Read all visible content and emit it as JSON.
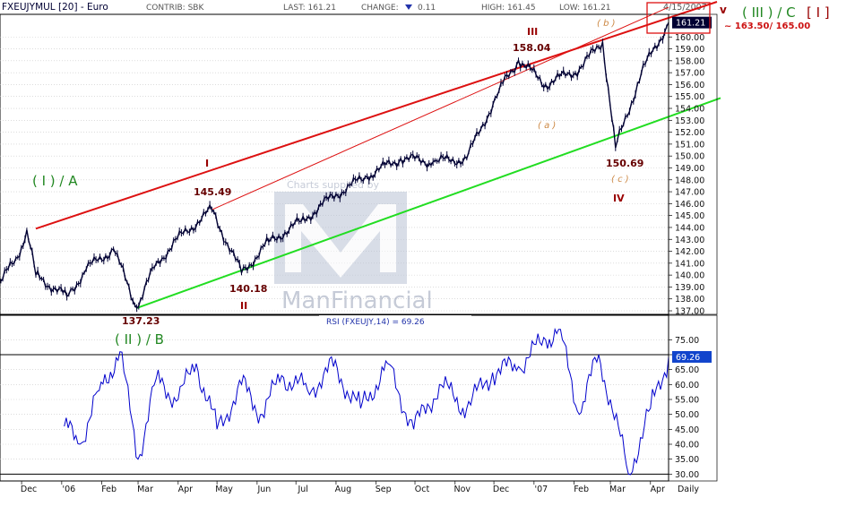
{
  "header": {
    "symbol": "FXEUJYMUL [20] - Euro",
    "contrib": "CONTRIB: SBK",
    "last": "LAST: 161.21",
    "change_label": "CHANGE:",
    "change_value": "0.11",
    "high": "HIGH: 161.45",
    "low": "LOW: 161.21",
    "date": "4/15/2007"
  },
  "watermark": {
    "top": "Charts supplied by",
    "bottom": "ManFinancial"
  },
  "price_axis": {
    "ticks": [
      "137.00",
      "138.00",
      "139.00",
      "140.00",
      "141.00",
      "142.00",
      "143.00",
      "144.00",
      "145.00",
      "146.00",
      "147.00",
      "148.00",
      "149.00",
      "150.00",
      "151.00",
      "152.00",
      "153.00",
      "154.00",
      "155.00",
      "156.00",
      "157.00",
      "158.00",
      "159.00",
      "160.00"
    ],
    "last_tag": "161.21"
  },
  "rsi_axis": {
    "title": "RSI (FXEUJY,14) = 69.26",
    "ticks": [
      "30.00",
      "35.00",
      "40.00",
      "45.00",
      "50.00",
      "55.00",
      "60.00",
      "65.00",
      "70.00",
      "75.00"
    ],
    "last_tag": "69.26"
  },
  "x_axis": {
    "labels": [
      "Dec",
      "'06",
      "Feb",
      "Mar",
      "Apr",
      "May",
      "Jun",
      "Jul",
      "Aug",
      "Sep",
      "Oct",
      "Nov",
      "Dec",
      "'07",
      "Feb",
      "Mar",
      "Apr",
      "Daily"
    ]
  },
  "annotations": {
    "wave_I": "I",
    "wave_II": "II",
    "wave_III": "III",
    "wave_IV": "IV",
    "wave_V": "v",
    "wave_b": "( b )",
    "wave_a": "( a )",
    "wave_c": "( c )",
    "p145": "145.49",
    "p140": "140.18",
    "p137": "137.23",
    "p158": "158.04",
    "p150": "150.69",
    "label_IA": "( I ) / A",
    "label_IIB": "( II ) / B",
    "label_IIIC": "( III ) / C",
    "label_Ibr": "[ I ]",
    "target": "~ 163.50/ 165.00"
  },
  "colors": {
    "up_channel": "#dd1111",
    "down_channel": "#22dd22",
    "price": "#000033",
    "rsi": "#0000cc",
    "wave_red": "#990000",
    "wave_green": "#228822",
    "wave_orange": "#cc8844"
  },
  "chart_data": [
    {
      "type": "line",
      "title": "FXEUJYMUL [20] - Euro",
      "ylabel": "",
      "ylim": [
        136.7,
        161.9
      ],
      "x": [
        "2005-11-15",
        "2005-11-28",
        "2005-12-05",
        "2005-12-12",
        "2006-01-05",
        "2006-01-20",
        "2006-02-10",
        "2006-02-28",
        "2006-03-15",
        "2006-04-05",
        "2006-04-27",
        "2006-05-20",
        "2006-06-10",
        "2006-07-05",
        "2006-08-01",
        "2006-08-25",
        "2006-09-20",
        "2006-10-15",
        "2006-11-10",
        "2006-12-05",
        "2006-12-20",
        "2007-01-10",
        "2007-02-05",
        "2007-02-23",
        "2007-03-05",
        "2007-03-25",
        "2007-04-15"
      ],
      "series": [
        {
          "values": [
            139.5,
            141.5,
            143.8,
            140.0,
            138.2,
            140.5,
            142.2,
            137.23,
            141.0,
            143.5,
            145.49,
            140.18,
            142.8,
            144.5,
            146.8,
            148.3,
            149.8,
            149.5,
            149.8,
            155.5,
            158.04,
            156.0,
            157.3,
            159.6,
            150.69,
            157.0,
            161.21
          ]
        }
      ],
      "trendlines": [
        {
          "from": [
            "2005-12-12",
            143.9
          ],
          "to": [
            "2007-04-15",
            161.6
          ]
        },
        {
          "from": [
            "2006-04-27",
            145.49
          ],
          "to": [
            "2007-04-15",
            162.5
          ]
        },
        {
          "from": [
            "2006-02-28",
            137.23
          ],
          "to": [
            "2007-04-15",
            153.3
          ]
        }
      ]
    },
    {
      "type": "line",
      "title": "RSI (FXEUJY,14) = 69.26",
      "ylim": [
        28,
        79
      ],
      "reference_lines": [
        30,
        70
      ],
      "x": [
        "2006-01-03",
        "2006-01-15",
        "2006-01-30",
        "2006-02-15",
        "2006-03-01",
        "2006-03-15",
        "2006-04-01",
        "2006-04-15",
        "2006-05-01",
        "2006-05-20",
        "2006-06-05",
        "2006-06-20",
        "2006-07-10",
        "2006-07-30",
        "2006-08-20",
        "2006-09-10",
        "2006-09-30",
        "2006-10-20",
        "2006-11-10",
        "2006-11-30",
        "2006-12-20",
        "2007-01-10",
        "2007-01-20",
        "2007-02-05",
        "2007-02-20",
        "2007-03-01",
        "2007-03-15",
        "2007-04-01",
        "2007-04-15"
      ],
      "series": [
        {
          "values": [
            46,
            40,
            58,
            71,
            35,
            62,
            55,
            67,
            45,
            60,
            50,
            63,
            58,
            66,
            52,
            67,
            45,
            60,
            52,
            64,
            66,
            75,
            79,
            50,
            70,
            55,
            30,
            52,
            69.26
          ]
        }
      ]
    }
  ]
}
